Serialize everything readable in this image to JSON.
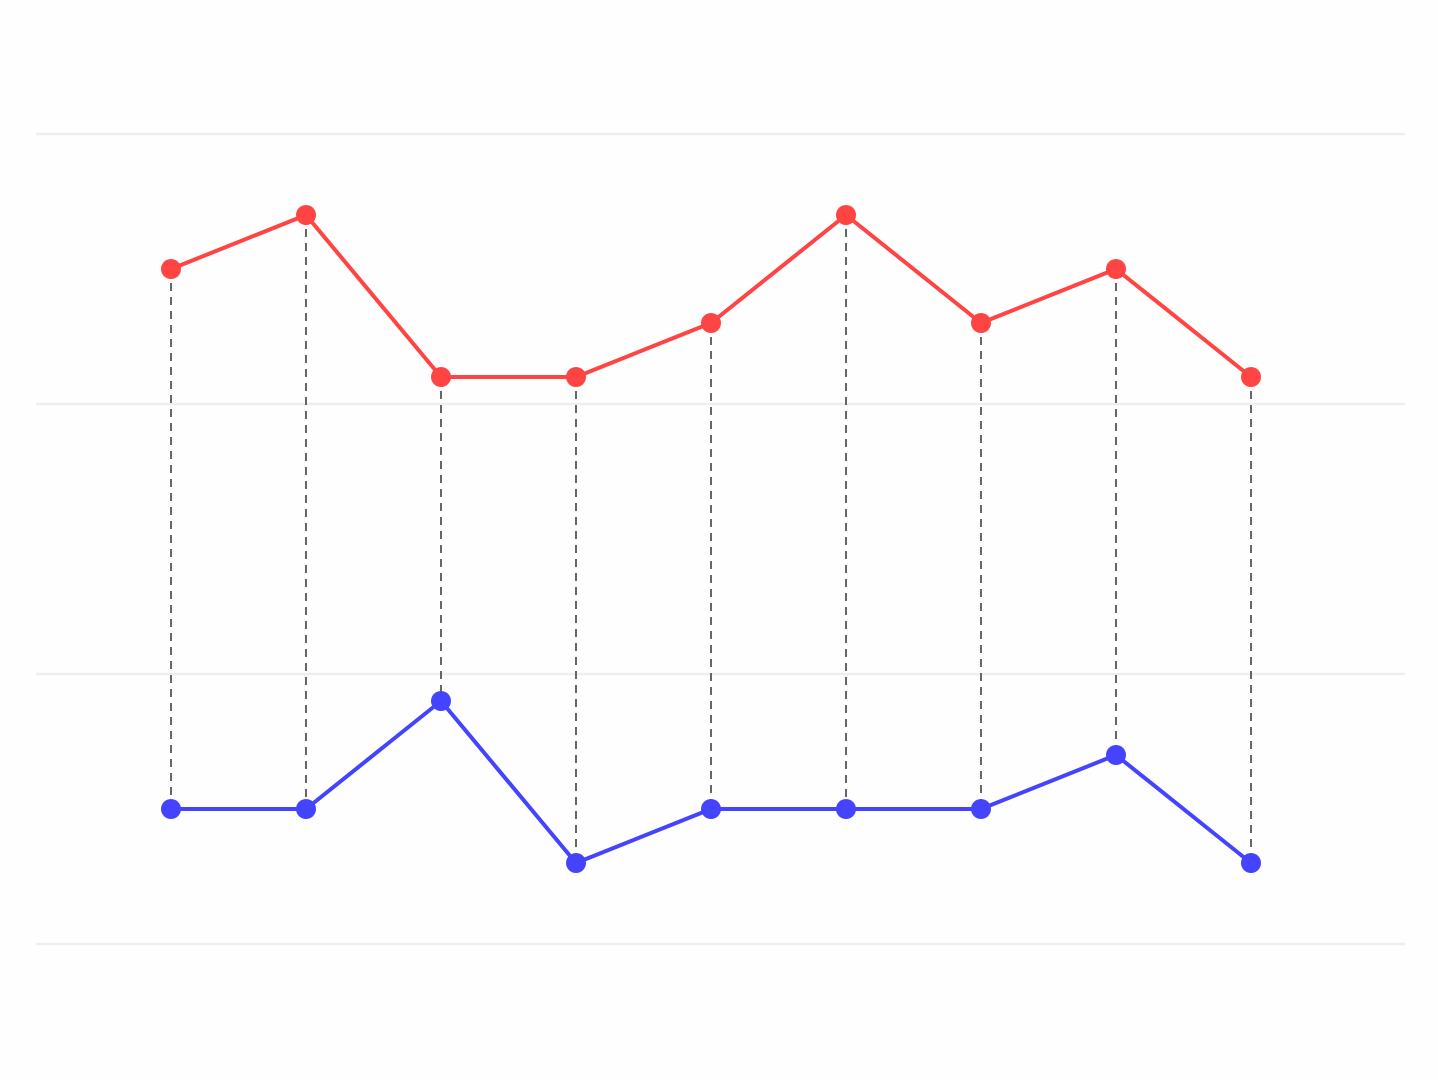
{
  "chart_data": {
    "type": "line",
    "title": "",
    "xlabel": "",
    "ylabel": "",
    "x": [
      1,
      2,
      3,
      4,
      5,
      6,
      7,
      8,
      9
    ],
    "xlim": [
      0,
      10
    ],
    "ylim": [
      0,
      15
    ],
    "gridlines_y": [
      0,
      5,
      10,
      15
    ],
    "grid": true,
    "legend": "none",
    "connectors": {
      "style": "dashed",
      "color": "#666666"
    },
    "series": [
      {
        "color": "#ff4444",
        "values": [
          12.5,
          13.5,
          10.5,
          10.5,
          11.5,
          13.5,
          11.5,
          12.5,
          10.5
        ]
      },
      {
        "color": "#4444ff",
        "values": [
          2.5,
          2.5,
          4.5,
          1.5,
          2.5,
          2.5,
          2.5,
          3.5,
          1.5
        ]
      }
    ]
  }
}
